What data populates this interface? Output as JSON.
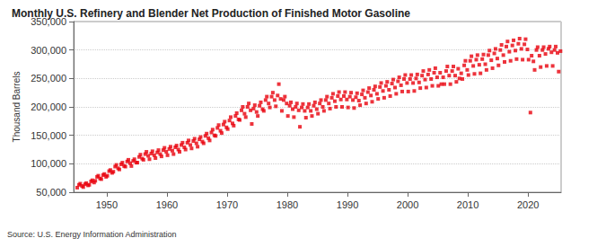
{
  "chart_data": {
    "type": "scatter",
    "title": "Monthly U.S. Refinery and Blender Net Production of Finished Motor Gasoline",
    "y_label": "Thousand Barrels",
    "annotations": [
      "Source: U.S. Energy Information Administration"
    ],
    "color": "#e8000b",
    "marker": "square",
    "grid": true,
    "xlim": [
      1944.5,
      2025.5
    ],
    "xticks": [
      1950,
      1960,
      1970,
      1980,
      1990,
      2000,
      2010,
      2020
    ],
    "ylim": [
      50000,
      350000
    ],
    "yticks": [
      {
        "value": 50000,
        "label": "50,000"
      },
      {
        "value": 100000,
        "label": "100,000"
      },
      {
        "value": 150000,
        "label": "150,000"
      },
      {
        "value": 200000,
        "label": "200,000"
      },
      {
        "value": 250000,
        "label": "250,000"
      },
      {
        "value": 300000,
        "label": "300,000"
      },
      {
        "value": 350000,
        "label": "350,000"
      }
    ],
    "x": [
      1945.1,
      1945.4,
      1945.6,
      1945.9,
      1946.1,
      1946.4,
      1946.6,
      1946.9,
      1947.1,
      1947.4,
      1947.6,
      1947.9,
      1948.1,
      1948.4,
      1948.6,
      1948.9,
      1949.1,
      1949.4,
      1949.6,
      1949.9,
      1950.1,
      1950.4,
      1950.6,
      1950.9,
      1951.1,
      1951.4,
      1951.6,
      1951.9,
      1952.1,
      1952.4,
      1952.6,
      1952.9,
      1953.1,
      1953.4,
      1953.6,
      1953.9,
      1954.1,
      1954.4,
      1954.6,
      1954.9,
      1955.1,
      1955.4,
      1955.6,
      1955.9,
      1956.1,
      1956.4,
      1956.6,
      1956.9,
      1957.1,
      1957.4,
      1957.6,
      1957.9,
      1958.1,
      1958.4,
      1958.6,
      1958.9,
      1959.1,
      1959.4,
      1959.6,
      1959.9,
      1960.1,
      1960.4,
      1960.6,
      1960.9,
      1961.1,
      1961.4,
      1961.6,
      1961.9,
      1962.1,
      1962.4,
      1962.6,
      1962.9,
      1963.1,
      1963.4,
      1963.6,
      1963.9,
      1964.1,
      1964.4,
      1964.6,
      1964.9,
      1965.1,
      1965.4,
      1965.6,
      1965.9,
      1966.1,
      1966.4,
      1966.6,
      1966.9,
      1967.1,
      1967.4,
      1967.6,
      1967.9,
      1968.1,
      1968.4,
      1968.6,
      1968.9,
      1969.1,
      1969.4,
      1969.6,
      1969.9,
      1970.1,
      1970.4,
      1970.6,
      1970.9,
      1971.1,
      1971.4,
      1971.6,
      1971.9,
      1972.1,
      1972.4,
      1972.6,
      1972.9,
      1973.1,
      1973.4,
      1973.6,
      1973.9,
      1974.1,
      1974.4,
      1974.6,
      1974.9,
      1975.1,
      1975.4,
      1975.6,
      1975.9,
      1976.1,
      1976.4,
      1976.6,
      1976.9,
      1977.1,
      1977.4,
      1977.6,
      1977.9,
      1978.1,
      1978.4,
      1978.6,
      1978.9,
      1979.1,
      1979.4,
      1979.6,
      1979.9,
      1980.1,
      1980.4,
      1980.6,
      1980.9,
      1981.1,
      1981.4,
      1981.6,
      1981.9,
      1982.1,
      1982.4,
      1982.6,
      1982.9,
      1983.1,
      1983.4,
      1983.6,
      1983.9,
      1984.1,
      1984.4,
      1984.6,
      1984.9,
      1985.1,
      1985.4,
      1985.6,
      1985.9,
      1986.1,
      1986.4,
      1986.6,
      1986.9,
      1987.1,
      1987.4,
      1987.6,
      1987.9,
      1988.1,
      1988.4,
      1988.6,
      1988.9,
      1989.1,
      1989.4,
      1989.6,
      1989.9,
      1990.1,
      1990.4,
      1990.6,
      1990.9,
      1991.1,
      1991.4,
      1991.6,
      1991.9,
      1992.1,
      1992.4,
      1992.6,
      1992.9,
      1993.1,
      1993.4,
      1993.6,
      1993.9,
      1994.1,
      1994.4,
      1994.6,
      1994.9,
      1995.1,
      1995.4,
      1995.6,
      1995.9,
      1996.1,
      1996.4,
      1996.6,
      1996.9,
      1997.1,
      1997.4,
      1997.6,
      1997.9,
      1998.1,
      1998.4,
      1998.6,
      1998.9,
      1999.1,
      1999.4,
      1999.6,
      1999.9,
      2000.1,
      2000.4,
      2000.6,
      2000.9,
      2001.1,
      2001.4,
      2001.6,
      2001.9,
      2002.1,
      2002.4,
      2002.6,
      2002.9,
      2003.1,
      2003.4,
      2003.6,
      2003.9,
      2004.1,
      2004.4,
      2004.6,
      2004.9,
      2005.1,
      2005.4,
      2005.6,
      2005.9,
      2006.1,
      2006.4,
      2006.6,
      2006.9,
      2007.1,
      2007.4,
      2007.6,
      2007.9,
      2008.1,
      2008.4,
      2008.6,
      2008.9,
      2009.1,
      2009.4,
      2009.6,
      2009.9,
      2010.1,
      2010.4,
      2010.6,
      2010.9,
      2011.1,
      2011.4,
      2011.6,
      2011.9,
      2012.1,
      2012.4,
      2012.6,
      2012.9,
      2013.1,
      2013.4,
      2013.6,
      2013.9,
      2014.1,
      2014.4,
      2014.6,
      2014.9,
      2015.1,
      2015.4,
      2015.6,
      2015.9,
      2016.1,
      2016.4,
      2016.6,
      2016.9,
      2017.1,
      2017.4,
      2017.6,
      2017.9,
      2018.1,
      2018.4,
      2018.6,
      2018.9,
      2019.1,
      2019.4,
      2019.6,
      2019.9,
      2020.1,
      2020.4,
      2020.6,
      2020.9,
      2021.1,
      2021.4,
      2021.6,
      2021.9,
      2022.1,
      2022.4,
      2022.6,
      2022.9,
      2023.1,
      2023.4,
      2023.6,
      2023.9,
      2024.1,
      2024.4,
      2024.6,
      2024.9,
      2025.1,
      2025.4
    ],
    "values": [
      58000,
      63000,
      65000,
      61000,
      59000,
      64000,
      66000,
      62000,
      63000,
      69000,
      71000,
      67000,
      70000,
      77000,
      79000,
      74000,
      73000,
      80000,
      82000,
      77000,
      79000,
      87000,
      89000,
      84000,
      86000,
      95000,
      98000,
      92000,
      90000,
      99000,
      102000,
      96000,
      95000,
      104000,
      107000,
      101000,
      96000,
      105000,
      108000,
      102000,
      102000,
      112000,
      116000,
      109000,
      107000,
      117000,
      121000,
      114000,
      108000,
      118000,
      122000,
      115000,
      110000,
      120000,
      124000,
      117000,
      113000,
      124000,
      128000,
      121000,
      115000,
      126000,
      130000,
      123000,
      117000,
      129000,
      132000,
      125000,
      121000,
      133000,
      137000,
      129000,
      125000,
      137000,
      141000,
      133000,
      127000,
      140000,
      144000,
      136000,
      130000,
      143000,
      147000,
      139000,
      136000,
      149000,
      153000,
      145000,
      141000,
      155000,
      160000,
      150000,
      149000,
      163000,
      168000,
      158000,
      154000,
      169000,
      174000,
      164000,
      161000,
      176000,
      182000,
      171000,
      167000,
      184000,
      189000,
      178000,
      177000,
      194000,
      200000,
      188000,
      182000,
      200000,
      206000,
      194000,
      170000,
      197000,
      203000,
      191000,
      184000,
      202000,
      208000,
      196000,
      193000,
      212000,
      218000,
      206000,
      199000,
      218000,
      225000,
      212000,
      201000,
      220000,
      240000,
      214000,
      193000,
      212000,
      218000,
      206000,
      184000,
      202000,
      208000,
      196000,
      182000,
      200000,
      206000,
      194000,
      165000,
      199000,
      205000,
      193000,
      181000,
      199000,
      205000,
      193000,
      184000,
      202000,
      208000,
      196000,
      188000,
      206000,
      212000,
      200000,
      193000,
      212000,
      218000,
      206000,
      197000,
      216000,
      223000,
      210000,
      200000,
      219000,
      226000,
      213000,
      200000,
      219000,
      226000,
      213000,
      199000,
      218000,
      225000,
      212000,
      198000,
      217000,
      224000,
      211000,
      203000,
      222000,
      229000,
      216000,
      206000,
      226000,
      233000,
      220000,
      209000,
      230000,
      236000,
      223000,
      214000,
      235000,
      242000,
      228000,
      216000,
      237000,
      244000,
      230000,
      219000,
      241000,
      248000,
      234000,
      223000,
      245000,
      252000,
      238000,
      227000,
      249000,
      256000,
      242000,
      227000,
      249000,
      256000,
      242000,
      228000,
      250000,
      257000,
      243000,
      233000,
      255000,
      263000,
      248000,
      234000,
      257000,
      265000,
      249000,
      237000,
      260000,
      268000,
      252000,
      237000,
      260000,
      240000,
      252000,
      240000,
      263000,
      271000,
      255000,
      240000,
      263000,
      271000,
      255000,
      244000,
      267000,
      250000,
      259000,
      249000,
      273000,
      281000,
      265000,
      256000,
      281000,
      289000,
      272000,
      258000,
      283000,
      291000,
      274000,
      259000,
      284000,
      292000,
      275000,
      265000,
      291000,
      299000,
      282000,
      268000,
      294000,
      302000,
      285000,
      273000,
      300000,
      309000,
      291000,
      279000,
      306000,
      315000,
      297000,
      281000,
      308000,
      317000,
      299000,
      284000,
      311000,
      320000,
      302000,
      283000,
      310000,
      319000,
      301000,
      283000,
      190000,
      290000,
      280000,
      265000,
      300000,
      305000,
      290000,
      270000,
      300000,
      305000,
      293000,
      272000,
      302000,
      306000,
      296000,
      272000,
      300000,
      306000,
      295000,
      262000,
      298000
    ]
  }
}
